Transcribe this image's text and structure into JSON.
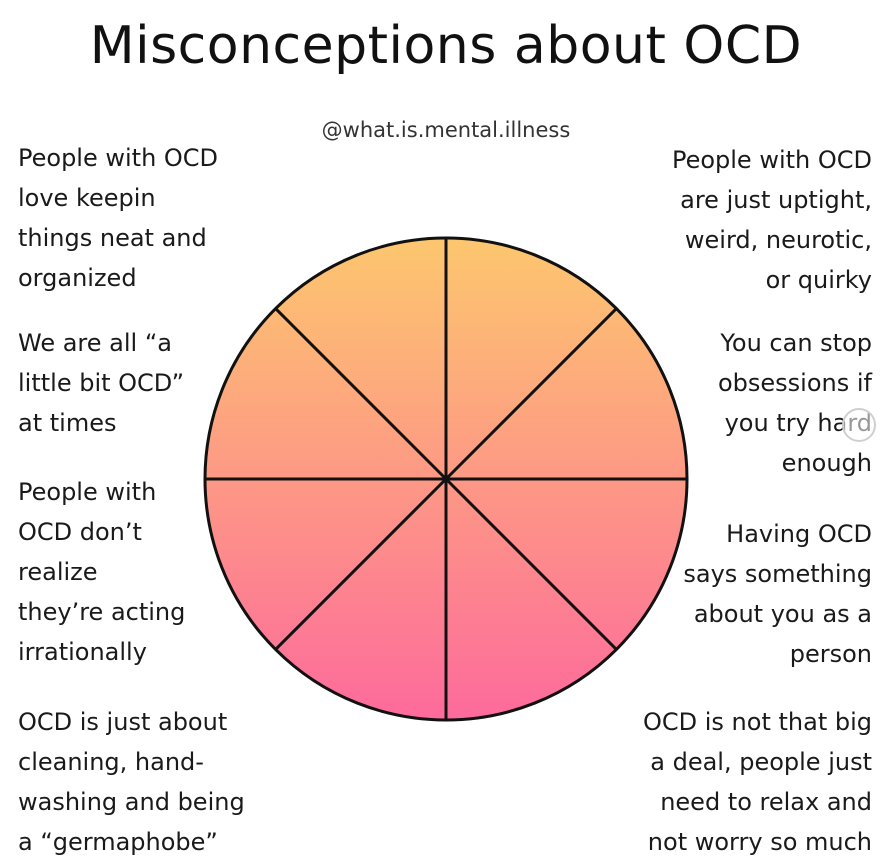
{
  "title": "Misconceptions about OCD",
  "handle": "@what.is.mental.illness",
  "wheel": {
    "segments": 8,
    "gradient_top": "#fdc76e",
    "gradient_bottom": "#fd6a9c",
    "line_color": "#111111"
  },
  "misconceptions": {
    "top_left": "People with OCD\nlove keepin\nthings neat and\norganized",
    "mid_left": "We are all “a\nlittle bit OCD”\nat times",
    "lower_left": "People with\nOCD don’t\nrealize\nthey’re acting\nirrationally",
    "bottom_left": "OCD is just about\ncleaning, hand-\nwashing and being\na “germaphobe”",
    "top_right": "People with OCD\nare just uptight,\nweird, neurotic,\nor quirky",
    "mid_right": "You can stop\nobsessions if\nyou try hard\nenough",
    "lower_right": "Having OCD\nsays something\nabout you as a\nperson",
    "bottom_right": "OCD is not that big\na deal, people just\nneed to relax and\nnot worry so much"
  }
}
